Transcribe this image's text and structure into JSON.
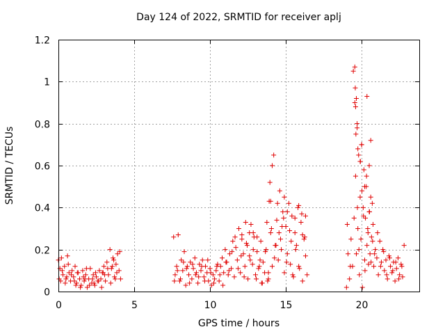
{
  "chart_data": {
    "type": "scatter",
    "title": "Day 124 of 2022, SRMTID for receiver aplj",
    "xlabel": "GPS time / hours",
    "ylabel": "SRMTID / TECUs",
    "xlim": [
      0,
      23.8
    ],
    "ylim": [
      0,
      1.2
    ],
    "xticks": [
      0,
      5,
      10,
      15,
      20
    ],
    "yticks": [
      0,
      0.2,
      0.4,
      0.6,
      0.8,
      1,
      1.2
    ],
    "ytick_labels": [
      "0",
      "0.2",
      "0.4",
      "0.6",
      "0.8",
      "1",
      "1.2"
    ],
    "grid": true,
    "marker": "+",
    "color": "#e00000",
    "series": [
      {
        "name": "SRMTID",
        "x": [
          0.0,
          0.1,
          0.2,
          0.3,
          0.4,
          0.5,
          0.6,
          0.7,
          0.8,
          0.9,
          1.0,
          1.1,
          1.2,
          1.3,
          1.4,
          1.5,
          1.6,
          1.7,
          1.8,
          1.9,
          2.0,
          2.1,
          2.2,
          2.3,
          2.4,
          2.5,
          2.6,
          2.7,
          2.8,
          2.9,
          3.0,
          3.1,
          3.2,
          3.3,
          3.4,
          3.5,
          3.6,
          3.7,
          3.8,
          3.9,
          4.0,
          4.1,
          0.05,
          0.25,
          0.45,
          0.65,
          0.85,
          1.05,
          1.25,
          1.45,
          1.65,
          1.85,
          2.05,
          2.25,
          2.45,
          2.65,
          2.85,
          3.05,
          3.25,
          3.45,
          3.65,
          3.85,
          4.05,
          0.15,
          0.55,
          1.15,
          1.75,
          2.35,
          2.95,
          3.55,
          3.75,
          7.6,
          7.7,
          7.8,
          7.9,
          8.0,
          8.1,
          8.2,
          8.3,
          8.4,
          8.5,
          8.6,
          8.7,
          8.8,
          8.9,
          9.0,
          9.1,
          9.2,
          9.3,
          9.4,
          9.5,
          9.6,
          9.7,
          9.8,
          9.9,
          10.0,
          10.1,
          10.2,
          10.3,
          10.4,
          10.5,
          10.6,
          10.7,
          10.8,
          10.9,
          11.0,
          11.1,
          11.2,
          11.3,
          11.4,
          11.5,
          11.6,
          11.7,
          11.8,
          11.9,
          12.0,
          12.1,
          12.2,
          12.3,
          12.4,
          12.5,
          12.6,
          12.7,
          12.8,
          12.9,
          13.0,
          13.1,
          13.2,
          13.3,
          13.4,
          13.5,
          13.6,
          13.7,
          13.8,
          13.9,
          14.0,
          14.1,
          14.2,
          14.3,
          14.4,
          14.5,
          14.6,
          14.7,
          14.8,
          14.9,
          15.0,
          15.1,
          15.2,
          15.3,
          15.4,
          15.5,
          15.6,
          15.7,
          15.8,
          15.9,
          16.0,
          16.1,
          16.2,
          16.3,
          16.4,
          7.65,
          7.85,
          8.05,
          8.25,
          8.45,
          8.65,
          8.85,
          9.05,
          9.25,
          9.45,
          9.65,
          9.85,
          10.05,
          10.25,
          10.45,
          10.65,
          10.85,
          11.05,
          11.25,
          11.45,
          11.65,
          11.85,
          12.05,
          12.25,
          12.45,
          12.65,
          12.85,
          13.05,
          13.25,
          13.45,
          13.65,
          13.85,
          14.05,
          14.25,
          14.45,
          14.65,
          14.85,
          15.05,
          15.25,
          15.45,
          15.65,
          15.85,
          16.05,
          16.25,
          13.75,
          13.85,
          13.95,
          14.0,
          14.1,
          14.35,
          14.55,
          14.75,
          14.9,
          15.1,
          15.35,
          15.6,
          15.85,
          16.1,
          16.3,
          11.9,
          12.1,
          12.35,
          12.6,
          12.85,
          13.1,
          13.35,
          19.0,
          19.1,
          19.2,
          19.3,
          19.4,
          19.5,
          19.55,
          19.6,
          19.65,
          19.7,
          19.75,
          19.8,
          19.85,
          19.9,
          19.95,
          20.0,
          20.05,
          20.1,
          20.15,
          20.2,
          20.25,
          20.3,
          20.35,
          20.4,
          20.45,
          20.5,
          20.55,
          20.6,
          20.65,
          20.7,
          20.75,
          20.8,
          20.9,
          21.0,
          21.1,
          21.2,
          21.3,
          21.4,
          21.5,
          21.6,
          21.7,
          21.8,
          21.9,
          22.0,
          22.1,
          22.2,
          22.3,
          22.4,
          22.5,
          22.6,
          22.7,
          22.8,
          19.05,
          19.25,
          19.45,
          19.62,
          19.72,
          19.82,
          19.92,
          20.02,
          20.12,
          20.22,
          20.32,
          20.42,
          20.52,
          20.62,
          20.72,
          20.85,
          21.05,
          21.25,
          21.45,
          21.65,
          21.85,
          22.05,
          22.25,
          22.45,
          22.65,
          19.55,
          19.58,
          19.6,
          19.65,
          19.7,
          19.75,
          19.9,
          20.0,
          20.2,
          20.35,
          20.5,
          20.6
        ],
        "y": [
          0.15,
          0.11,
          0.16,
          0.08,
          0.12,
          0.06,
          0.17,
          0.09,
          0.05,
          0.1,
          0.07,
          0.12,
          0.04,
          0.09,
          0.06,
          0.03,
          0.1,
          0.05,
          0.08,
          0.02,
          0.06,
          0.11,
          0.04,
          0.08,
          0.03,
          0.07,
          0.05,
          0.1,
          0.06,
          0.09,
          0.12,
          0.05,
          0.14,
          0.08,
          0.2,
          0.11,
          0.16,
          0.07,
          0.13,
          0.18,
          0.1,
          0.06,
          0.06,
          0.1,
          0.04,
          0.13,
          0.08,
          0.05,
          0.09,
          0.02,
          0.07,
          0.11,
          0.03,
          0.06,
          0.09,
          0.05,
          0.02,
          0.08,
          0.11,
          0.04,
          0.15,
          0.09,
          0.19,
          0.05,
          0.07,
          0.03,
          0.06,
          0.04,
          0.09,
          0.12,
          0.06,
          0.26,
          0.08,
          0.12,
          0.27,
          0.05,
          0.15,
          0.1,
          0.19,
          0.03,
          0.12,
          0.08,
          0.14,
          0.06,
          0.11,
          0.16,
          0.09,
          0.04,
          0.13,
          0.1,
          0.15,
          0.07,
          0.12,
          0.09,
          0.05,
          0.11,
          0.03,
          0.08,
          0.06,
          0.1,
          0.13,
          0.05,
          0.12,
          0.16,
          0.09,
          0.2,
          0.14,
          0.08,
          0.18,
          0.11,
          0.24,
          0.07,
          0.21,
          0.15,
          0.3,
          0.09,
          0.27,
          0.18,
          0.12,
          0.23,
          0.06,
          0.17,
          0.32,
          0.13,
          0.26,
          0.08,
          0.19,
          0.11,
          0.15,
          0.04,
          0.14,
          0.09,
          0.2,
          0.05,
          0.43,
          0.28,
          0.12,
          0.65,
          0.22,
          0.34,
          0.15,
          0.48,
          0.2,
          0.38,
          0.09,
          0.31,
          0.18,
          0.42,
          0.13,
          0.36,
          0.07,
          0.28,
          0.22,
          0.4,
          0.11,
          0.33,
          0.05,
          0.25,
          0.17,
          0.08,
          0.05,
          0.1,
          0.06,
          0.14,
          0.11,
          0.04,
          0.13,
          0.08,
          0.07,
          0.12,
          0.05,
          0.15,
          0.09,
          0.04,
          0.12,
          0.08,
          0.03,
          0.14,
          0.1,
          0.19,
          0.26,
          0.11,
          0.17,
          0.07,
          0.22,
          0.15,
          0.28,
          0.06,
          0.12,
          0.04,
          0.19,
          0.09,
          0.3,
          0.16,
          0.42,
          0.25,
          0.35,
          0.14,
          0.29,
          0.08,
          0.2,
          0.12,
          0.37,
          0.26,
          0.33,
          0.06,
          0.52,
          0.43,
          0.6,
          0.22,
          0.28,
          0.31,
          0.45,
          0.38,
          0.24,
          0.35,
          0.41,
          0.27,
          0.36,
          0.3,
          0.25,
          0.33,
          0.28,
          0.2,
          0.26,
          0.24,
          0.02,
          0.18,
          0.06,
          0.25,
          0.12,
          0.35,
          0.9,
          0.55,
          0.18,
          0.8,
          0.3,
          0.65,
          0.08,
          0.45,
          0.25,
          0.7,
          0.02,
          0.4,
          0.58,
          0.15,
          0.35,
          0.5,
          0.22,
          0.3,
          0.13,
          0.38,
          0.18,
          0.72,
          0.26,
          0.42,
          0.32,
          0.12,
          0.2,
          0.16,
          0.08,
          0.24,
          0.14,
          0.2,
          0.1,
          0.15,
          0.06,
          0.17,
          0.12,
          0.09,
          0.14,
          0.05,
          0.11,
          0.16,
          0.08,
          0.13,
          0.07,
          0.22,
          0.32,
          0.12,
          1.05,
          0.75,
          0.4,
          0.2,
          0.62,
          0.48,
          0.36,
          0.1,
          0.55,
          0.28,
          0.38,
          0.14,
          0.24,
          0.18,
          0.28,
          0.12,
          0.19,
          0.08,
          0.16,
          0.1,
          0.14,
          0.06,
          0.12,
          1.07,
          0.97,
          0.88,
          0.92,
          0.78,
          0.68,
          0.62,
          0.7,
          0.5,
          0.93,
          0.6,
          0.45
        ]
      }
    ]
  }
}
